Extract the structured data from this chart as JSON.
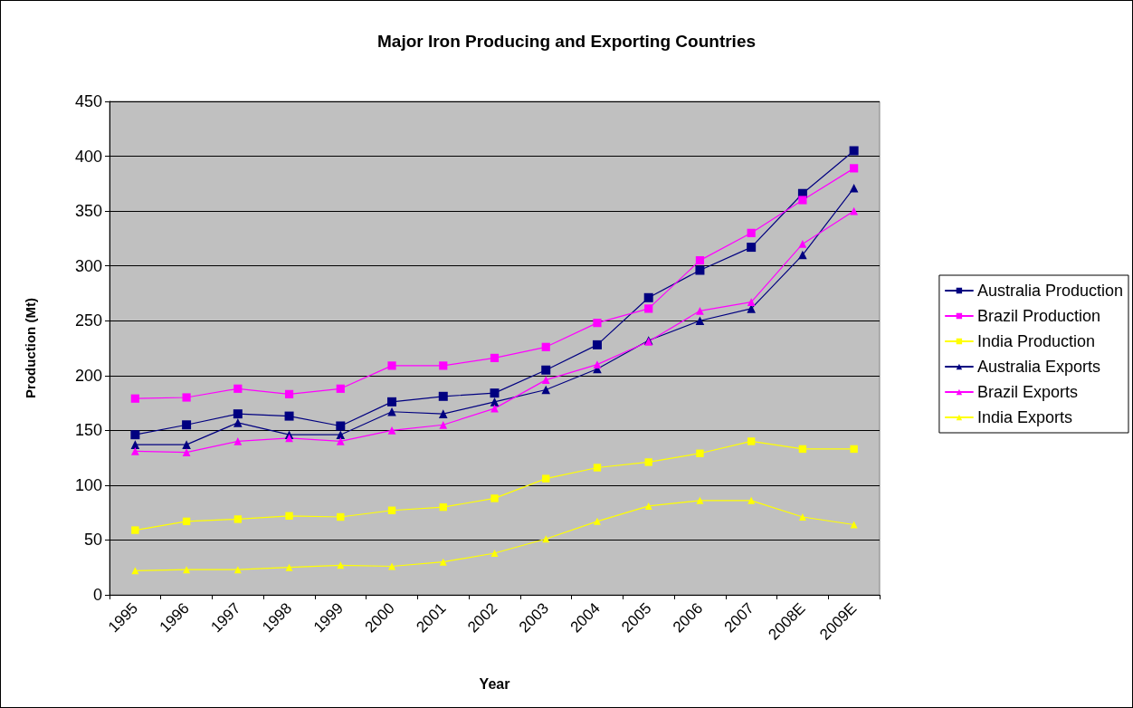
{
  "chart_data": {
    "type": "line",
    "title": "Major Iron Producing and Exporting Countries",
    "xlabel": "Year",
    "ylabel": "Production (Mt)",
    "categories": [
      "1995",
      "1996",
      "1997",
      "1998",
      "1999",
      "2000",
      "2001",
      "2002",
      "2003",
      "2004",
      "2005",
      "2006",
      "2007",
      "2008E",
      "2009E"
    ],
    "ylim": [
      0,
      450
    ],
    "yticks": [
      0,
      50,
      100,
      150,
      200,
      250,
      300,
      350,
      400,
      450
    ],
    "grid": "y",
    "legend": "right",
    "line_style": "solid",
    "series": [
      {
        "name": "Australia Production",
        "color": "#000080",
        "marker": "square",
        "values": [
          146,
          155,
          165,
          163,
          154,
          176,
          181,
          184,
          205,
          228,
          271,
          296,
          317,
          366,
          405
        ]
      },
      {
        "name": "Brazil Production",
        "color": "#ff00ff",
        "marker": "square",
        "values": [
          179,
          180,
          188,
          183,
          188,
          209,
          209,
          216,
          226,
          248,
          261,
          305,
          330,
          360,
          389
        ]
      },
      {
        "name": "India Production",
        "color": "#ffff00",
        "marker": "square",
        "values": [
          59,
          67,
          69,
          72,
          71,
          77,
          80,
          88,
          106,
          116,
          121,
          129,
          140,
          133,
          133
        ]
      },
      {
        "name": "Australia Exports",
        "color": "#000080",
        "marker": "triangle",
        "values": [
          137,
          137,
          157,
          146,
          146,
          167,
          165,
          176,
          187,
          206,
          232,
          250,
          261,
          310,
          371
        ]
      },
      {
        "name": "Brazil Exports",
        "color": "#ff00ff",
        "marker": "triangle",
        "values": [
          131,
          130,
          140,
          143,
          140,
          150,
          155,
          170,
          196,
          210,
          231,
          259,
          267,
          320,
          350
        ]
      },
      {
        "name": "India Exports",
        "color": "#ffff00",
        "marker": "triangle",
        "values": [
          22,
          23,
          23,
          25,
          27,
          26,
          30,
          38,
          51,
          67,
          81,
          86,
          86,
          71,
          64
        ]
      }
    ]
  }
}
